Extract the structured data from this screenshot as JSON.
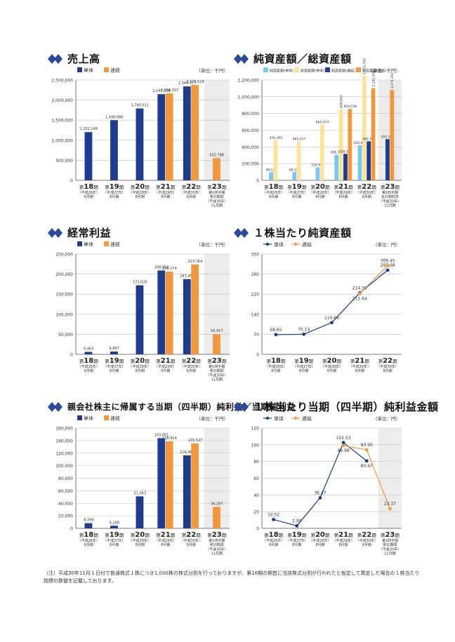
{
  "colors": {
    "single": "#1f3c8e",
    "consolidated": "#f29640",
    "bg_shade": "#ececec",
    "grid": "#bfbfbf",
    "axis": "#555555",
    "line_single": "#1e3a8a",
    "line_consolidated": "#f39a3c",
    "title_icon": "#2a4a9a"
  },
  "title_icon": "double-diamond-icon",
  "note": "（注）平成30年11月１日付で普通株式１株につき1,000株の株式分割を行っておりますが、第18期の期首に当該株式分割が行われたと仮定して算定した場合の１株当たり指標の数値を記載しております。",
  "chart_data": [
    {
      "type": "bar",
      "title": "売上高",
      "unit": "（単位：千円）",
      "categories": [
        "第18期",
        "第19期",
        "第20期",
        "第21期",
        "第22期",
        "第23期"
      ],
      "period_notes": [
        [
          "（平成26年）",
          "8月期"
        ],
        [
          "（平成27年）",
          "8月期"
        ],
        [
          "（平成28年）",
          "8月期"
        ],
        [
          "（平成29年）",
          "8月期"
        ],
        [
          "（平成30年）",
          "8月期"
        ],
        [
          "第1四半期",
          "累計期間",
          "（平成30年）",
          "11月期"
        ]
      ],
      "ylim": [
        0,
        2500000
      ],
      "yticks": [
        0,
        500000,
        1000000,
        1500000,
        2000000,
        2500000
      ],
      "shade_last": true,
      "series": [
        {
          "name": "単体",
          "values": [
            1202148,
            1498888,
            1790011,
            2147318,
            2340377,
            null
          ],
          "labels": [
            "1,202,148",
            "1,498,888",
            "1,790,011",
            "2,147,318",
            "2,340,377",
            ""
          ]
        },
        {
          "name": "連結",
          "values": [
            null,
            null,
            null,
            2166307,
            2375518,
            552788
          ],
          "labels": [
            "",
            "",
            "",
            "2,166,307",
            "2,375,518",
            "552,788"
          ]
        }
      ]
    },
    {
      "type": "bar",
      "title": "純資産額／総資産額",
      "unit": "（単位：千円）",
      "categories": [
        "第18期",
        "第19期",
        "第20期",
        "第21期",
        "第22期",
        "第23期"
      ],
      "period_notes": [
        [
          "（平成26年）",
          "8月期"
        ],
        [
          "（平成27年）",
          "8月期"
        ],
        [
          "（平成28年）",
          "8月期"
        ],
        [
          "（平成29年）",
          "8月期"
        ],
        [
          "（平成30年）",
          "8月期"
        ],
        [
          "第1四半期",
          "会計期間末",
          "（平成30年）",
          "11月期"
        ]
      ],
      "ylim": [
        0,
        1200000
      ],
      "yticks": [
        0,
        200000,
        400000,
        600000,
        800000,
        1000000,
        1200000
      ],
      "shade_last": true,
      "series": [
        {
          "name": "純資産額(単体)",
          "color": "#7cc6ee",
          "values": [
            98127,
            98195,
            154917,
            304377,
            420837,
            null
          ],
          "labels": [
            "98,127",
            "98,195",
            "154,917",
            "304,377",
            "420,837",
            ""
          ]
        },
        {
          "name": "総資産額(単体)",
          "color": "#fae39a",
          "values": [
            476391,
            465257,
            665973,
            848852,
            1252345,
            null
          ],
          "labels": [
            "476,391",
            "465,257",
            "665,973",
            "848,852",
            "1,252,345",
            ""
          ]
        },
        {
          "name": "純資産額(連結)",
          "color": "#1f3c8e",
          "values": [
            null,
            null,
            null,
            316594,
            466797,
            492585
          ],
          "labels": [
            "",
            "",
            "",
            "316,594",
            "466,797",
            "492,585"
          ]
        },
        {
          "name": "総資産額(連結)",
          "color": "#f29640",
          "values": [
            null,
            null,
            null,
            854038,
            1102416,
            1079202
          ],
          "labels": [
            "",
            "",
            "",
            "854,038",
            "1,102,416",
            "1,079,202"
          ]
        }
      ]
    },
    {
      "type": "bar",
      "title": "経常利益",
      "unit": "（単位：千円）",
      "categories": [
        "第18期",
        "第19期",
        "第20期",
        "第21期",
        "第22期",
        "第23期"
      ],
      "period_notes": [
        [
          "（平成26年）",
          "8月期"
        ],
        [
          "（平成27年）",
          "8月期"
        ],
        [
          "（平成28年）",
          "8月期"
        ],
        [
          "（平成29年）",
          "8月期"
        ],
        [
          "（平成30年）",
          "8月期"
        ],
        [
          "第1四半期",
          "累計期間",
          "（平成30年）",
          "11月期"
        ]
      ],
      "ylim": [
        0,
        250000
      ],
      "yticks": [
        0,
        50000,
        100000,
        150000,
        200000,
        250000
      ],
      "shade_last": true,
      "series": [
        {
          "name": "単体",
          "values": [
            6063,
            6897,
            172026,
            208950,
            187456,
            null
          ],
          "labels": [
            "6,063",
            "6,897",
            "172,026",
            "208,950",
            "187,456",
            ""
          ]
        },
        {
          "name": "連結",
          "values": [
            null,
            null,
            null,
            206174,
            223764,
            50417
          ],
          "labels": [
            "",
            "",
            "",
            "206,174",
            "223,764",
            "50,417"
          ]
        }
      ]
    },
    {
      "type": "line",
      "title": "１株当たり純資産額",
      "unit": "（単位：円）",
      "categories": [
        "第18期",
        "第19期",
        "第20期",
        "第21期",
        "第22期"
      ],
      "period_notes": [
        [
          "（平成26年）",
          "8月期"
        ],
        [
          "（平成27年）",
          "8月期"
        ],
        [
          "（平成28年）",
          "8月期"
        ],
        [
          "（平成29年）",
          "8月期"
        ],
        [
          "（平成30年）",
          "8月期"
        ]
      ],
      "ylim": [
        0,
        350
      ],
      "yticks": [
        0,
        70,
        140,
        210,
        280,
        350
      ],
      "slots": 5,
      "shade_last": false,
      "series": [
        {
          "name": "単体",
          "values": [
            68.65,
            70.14,
            110.66,
            214.39,
            293.68
          ],
          "labels": [
            "68.65",
            "70.14",
            "110.66",
            "214.39",
            "293.68"
          ]
        },
        {
          "name": "連結",
          "values": [
            null,
            null,
            null,
            211.64,
            309.45
          ],
          "labels": [
            "",
            "",
            "",
            "211.64",
            "309.45"
          ]
        }
      ]
    },
    {
      "type": "bar",
      "title": "親会社株主に帰属する当期（四半期）純利益／当期純利益",
      "unit": "（単位：千円）",
      "categories": [
        "第18期",
        "第19期",
        "第20期",
        "第21期",
        "第22期",
        "第23期"
      ],
      "period_notes": [
        [
          "（平成26年）",
          "8月期"
        ],
        [
          "（平成27年）",
          "8月期"
        ],
        [
          "（平成28年）",
          "8月期"
        ],
        [
          "（平成29年）",
          "8月期"
        ],
        [
          "（平成30年）",
          "8月期"
        ],
        [
          "第1四半期",
          "累計期間",
          "（平成30年）",
          "11月期"
        ]
      ],
      "ylim": [
        0,
        160000
      ],
      "yticks": [
        0,
        20000,
        40000,
        60000,
        80000,
        100000,
        120000,
        140000,
        160000
      ],
      "shade_last": true,
      "series": [
        {
          "name": "単体",
          "values": [
            8269,
            4188,
            51063,
            143801,
            116365,
            null
          ],
          "labels": [
            "8,269",
            "4,188",
            "51,063",
            "143,801",
            "116,365",
            ""
          ]
        },
        {
          "name": "連結",
          "values": [
            null,
            null,
            null,
            138814,
            135527,
            34287
          ],
          "labels": [
            "",
            "",
            "",
            "138,814",
            "135,527",
            "34,287"
          ]
        }
      ]
    },
    {
      "type": "line",
      "title": "１株当たり当期（四半期）純利益金額",
      "unit": "（単位：円）",
      "categories": [
        "第18期",
        "第19期",
        "第20期",
        "第21期",
        "第22期",
        "第23期"
      ],
      "period_notes": [
        [
          "（平成26年）",
          "8月期"
        ],
        [
          "（平成27年）",
          "8月期"
        ],
        [
          "（平成28年）",
          "8月期"
        ],
        [
          "（平成29年）",
          "8月期"
        ],
        [
          "（平成30年）",
          "8月期"
        ],
        [
          "第1四半期",
          "累計期間",
          "（平成30年）",
          "11月期"
        ]
      ],
      "ylim": [
        0,
        120
      ],
      "yticks": [
        0,
        20,
        40,
        60,
        80,
        100,
        120
      ],
      "slots": 6,
      "shade_last": true,
      "series": [
        {
          "name": "単体",
          "values": [
            10.52,
            2.99,
            36.47,
            102.53,
            80.67,
            null
          ],
          "labels": [
            "10.52",
            "2.99",
            "36.47",
            "102.53",
            "80.67",
            ""
          ]
        },
        {
          "name": "連結",
          "values": [
            null,
            null,
            null,
            98.98,
            93.95,
            23.37
          ],
          "labels": [
            "",
            "",
            "",
            "98.98",
            "93.95",
            "23.37"
          ]
        }
      ]
    }
  ]
}
